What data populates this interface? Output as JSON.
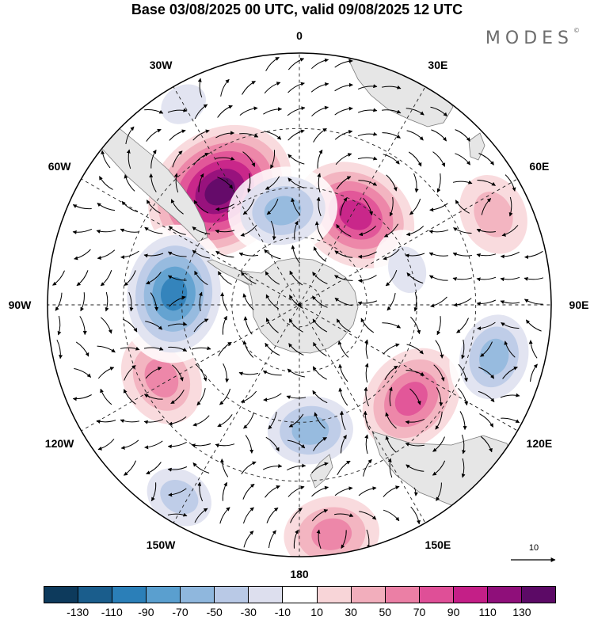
{
  "header": {
    "title": "Base 03/08/2025 00 UTC, valid 09/08/2025 12 UTC",
    "brand": "MODES",
    "brand_mark": "©"
  },
  "map": {
    "projection": "south-polar-stereographic",
    "longitude_labels": [
      {
        "text": "0",
        "lon": 0
      },
      {
        "text": "30E",
        "lon": 30
      },
      {
        "text": "60E",
        "lon": 60
      },
      {
        "text": "90E",
        "lon": 90
      },
      {
        "text": "120E",
        "lon": 120
      },
      {
        "text": "150E",
        "lon": 150
      },
      {
        "text": "180",
        "lon": 180
      },
      {
        "text": "150W",
        "lon": -150
      },
      {
        "text": "120W",
        "lon": -120
      },
      {
        "text": "90W",
        "lon": -90
      },
      {
        "text": "60W",
        "lon": -60
      },
      {
        "text": "30W",
        "lon": -30
      }
    ],
    "latitude_circles": [
      -80,
      -60,
      -40,
      -20
    ],
    "anomaly_centers": [
      {
        "lon": -35,
        "rim": 0.55,
        "value": 130,
        "kind": "positive"
      },
      {
        "lon": 32,
        "rim": 0.42,
        "value": 90,
        "kind": "positive"
      },
      {
        "lon": 130,
        "rim": 0.58,
        "value": 70,
        "kind": "positive"
      },
      {
        "lon": -118,
        "rim": 0.62,
        "value": 50,
        "kind": "positive"
      },
      {
        "lon": 172,
        "rim": 0.92,
        "value": 50,
        "kind": "positive"
      },
      {
        "lon": 65,
        "rim": 0.85,
        "value": 30,
        "kind": "positive"
      },
      {
        "lon": -10,
        "rim": 0.38,
        "value": -70,
        "kind": "negative"
      },
      {
        "lon": -85,
        "rim": 0.5,
        "value": -110,
        "kind": "negative"
      },
      {
        "lon": 72,
        "rim": 0.45,
        "value": -30,
        "kind": "negative"
      },
      {
        "lon": 105,
        "rim": 0.8,
        "value": -70,
        "kind": "negative"
      },
      {
        "lon": 175,
        "rim": 0.5,
        "value": -70,
        "kind": "negative"
      },
      {
        "lon": -148,
        "rim": 0.9,
        "value": -50,
        "kind": "negative"
      },
      {
        "lon": -30,
        "rim": 0.92,
        "value": -30,
        "kind": "negative"
      }
    ]
  },
  "wind_scale": {
    "label": "10"
  },
  "colorbar": {
    "colors": [
      "#0d3a5c",
      "#1a5d8c",
      "#2b7fb8",
      "#5a9fcf",
      "#8fb7dd",
      "#b9c9e6",
      "#dddfee",
      "#ffffff",
      "#f8d5d8",
      "#f2aebc",
      "#eb7fa5",
      "#df4f97",
      "#c41f87",
      "#8f0f7a",
      "#5c0a66"
    ],
    "ticks": [
      "-130",
      "-110",
      "-90",
      "-70",
      "-50",
      "-30",
      "-10",
      "10",
      "30",
      "50",
      "70",
      "90",
      "110",
      "130"
    ]
  }
}
